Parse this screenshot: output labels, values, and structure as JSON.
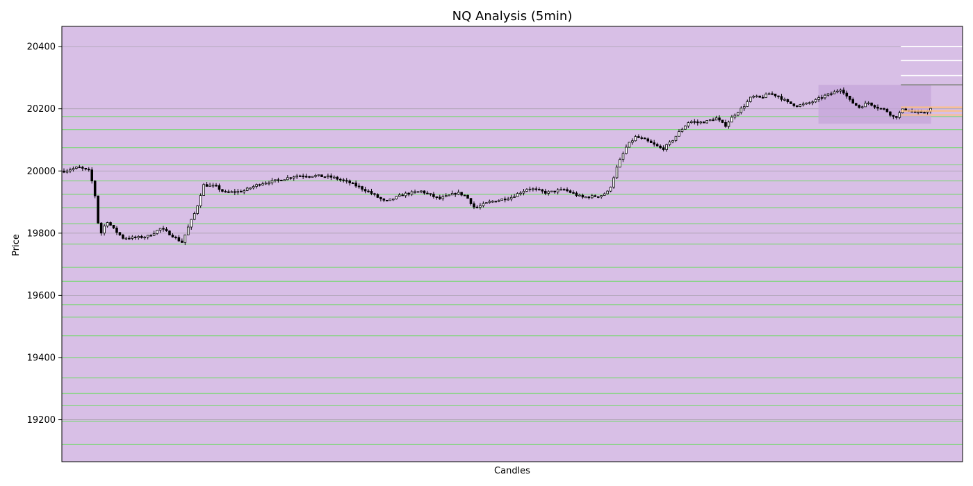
{
  "chart_data": {
    "type": "candlestick",
    "title": "NQ Analysis (5min)",
    "xlabel": "Candles",
    "ylabel": "Price",
    "ylim": [
      19065,
      20465
    ],
    "yticks": [
      19200,
      19400,
      19600,
      19800,
      20000,
      20200,
      20400
    ],
    "grid": "horizontal",
    "legend": "none",
    "colors": {
      "plot_background": "#d8bfe6",
      "grid": "#a8a0ad",
      "support_level": "#7fd67a",
      "candle": "#000000",
      "up_candle_body": "#ffffff",
      "zone": "#c6a6d9",
      "level_line_white": "#ffffff",
      "level_line_gray": "#8c8c8c",
      "level_line_orange": "#ffbf80"
    },
    "candle_count": 280,
    "price_path": [
      [
        0,
        20000
      ],
      [
        8,
        20012
      ],
      [
        14,
        20000
      ],
      [
        17,
        19940
      ],
      [
        20,
        19790
      ],
      [
        24,
        19840
      ],
      [
        28,
        19812
      ],
      [
        33,
        19785
      ],
      [
        40,
        19785
      ],
      [
        47,
        19790
      ],
      [
        54,
        19815
      ],
      [
        60,
        19795
      ],
      [
        66,
        19770
      ],
      [
        70,
        19825
      ],
      [
        74,
        19875
      ],
      [
        78,
        19955
      ],
      [
        85,
        19950
      ],
      [
        90,
        19930
      ],
      [
        100,
        19935
      ],
      [
        110,
        19960
      ],
      [
        120,
        19970
      ],
      [
        130,
        19985
      ],
      [
        140,
        19985
      ],
      [
        150,
        19980
      ],
      [
        160,
        19962
      ],
      [
        170,
        19935
      ],
      [
        180,
        19900
      ],
      [
        190,
        19925
      ],
      [
        200,
        19935
      ],
      [
        210,
        19910
      ],
      [
        220,
        19930
      ],
      [
        225,
        19920
      ],
      [
        230,
        19880
      ],
      [
        238,
        19900
      ],
      [
        250,
        19915
      ],
      [
        260,
        19945
      ],
      [
        270,
        19930
      ],
      [
        280,
        19940
      ],
      [
        290,
        19915
      ],
      [
        300,
        19920
      ],
      [
        305,
        19935
      ],
      [
        310,
        20020
      ],
      [
        315,
        20080
      ],
      [
        320,
        20110
      ],
      [
        325,
        20100
      ],
      [
        330,
        20085
      ],
      [
        335,
        20070
      ],
      [
        340,
        20095
      ],
      [
        345,
        20130
      ],
      [
        350,
        20160
      ],
      [
        355,
        20155
      ],
      [
        360,
        20160
      ],
      [
        365,
        20170
      ],
      [
        370,
        20145
      ],
      [
        375,
        20180
      ],
      [
        380,
        20205
      ],
      [
        385,
        20240
      ],
      [
        390,
        20235
      ],
      [
        395,
        20250
      ],
      [
        400,
        20240
      ],
      [
        405,
        20220
      ],
      [
        410,
        20210
      ],
      [
        415,
        20215
      ],
      [
        420,
        20225
      ],
      [
        425,
        20240
      ],
      [
        430,
        20250
      ],
      [
        435,
        20265
      ],
      [
        440,
        20225
      ],
      [
        445,
        20205
      ],
      [
        450,
        20220
      ],
      [
        455,
        20205
      ],
      [
        460,
        20195
      ],
      [
        465,
        20170
      ],
      [
        470,
        20200
      ],
      [
        475,
        20190
      ],
      [
        480,
        20185
      ],
      [
        485,
        20200
      ]
    ],
    "support_levels": [
      20175,
      20133,
      20075,
      20020,
      19968,
      19925,
      19882,
      19830,
      19765,
      19690,
      19645,
      19570,
      19530,
      19470,
      19400,
      19335,
      19285,
      19245,
      19195,
      19120
    ],
    "zone": {
      "x_start": 0.84,
      "x_end": 0.965,
      "y_low": 20152,
      "y_high": 20277
    },
    "right_levels": [
      {
        "price": 20400,
        "color": "white"
      },
      {
        "price": 20355,
        "color": "white"
      },
      {
        "price": 20307,
        "color": "white"
      },
      {
        "price": 20277,
        "color": "gray"
      },
      {
        "price": 20205,
        "color": "orange"
      },
      {
        "price": 20193,
        "color": "orange"
      },
      {
        "price": 20180,
        "color": "orange"
      }
    ]
  }
}
